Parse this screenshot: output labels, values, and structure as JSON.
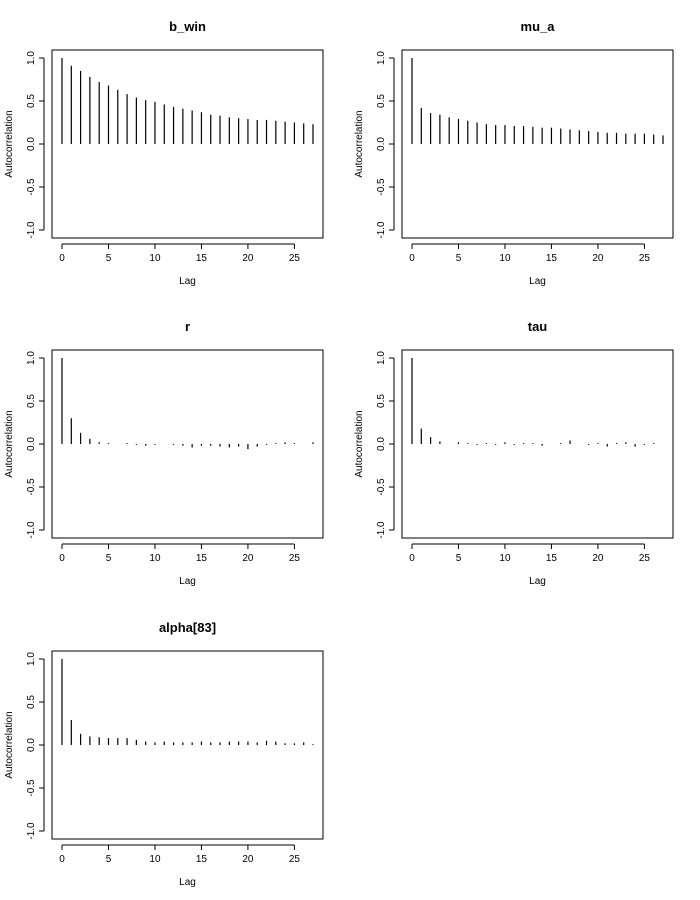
{
  "figure": {
    "background": "#ffffff",
    "ink_color": "#000000"
  },
  "chart_data": [
    {
      "type": "bar",
      "title": "b_win",
      "xlabel": "Lag",
      "ylabel": "Autocorrelation",
      "xlim": [
        0,
        27
      ],
      "ylim": [
        -1,
        1
      ],
      "xticks": [
        0,
        5,
        10,
        15,
        20,
        25
      ],
      "yticks": [
        -1.0,
        -0.5,
        0.0,
        0.5,
        1.0
      ],
      "xtick_labels": [
        "0",
        "5",
        "10",
        "15",
        "20",
        "25"
      ],
      "ytick_labels": [
        "-1.0",
        "-0.5",
        "0.0",
        "0.5",
        "1.0"
      ],
      "grid": false,
      "x": [
        0,
        1,
        2,
        3,
        4,
        5,
        6,
        7,
        8,
        9,
        10,
        11,
        12,
        13,
        14,
        15,
        16,
        17,
        18,
        19,
        20,
        21,
        22,
        23,
        24,
        25,
        26,
        27
      ],
      "values": [
        1.0,
        0.91,
        0.85,
        0.78,
        0.72,
        0.68,
        0.63,
        0.58,
        0.54,
        0.51,
        0.49,
        0.46,
        0.43,
        0.41,
        0.39,
        0.37,
        0.34,
        0.33,
        0.31,
        0.3,
        0.29,
        0.28,
        0.28,
        0.27,
        0.26,
        0.25,
        0.24,
        0.23
      ]
    },
    {
      "type": "bar",
      "title": "mu_a",
      "xlabel": "Lag",
      "ylabel": "Autocorrelation",
      "xlim": [
        0,
        27
      ],
      "ylim": [
        -1,
        1
      ],
      "xticks": [
        0,
        5,
        10,
        15,
        20,
        25
      ],
      "yticks": [
        -1.0,
        -0.5,
        0.0,
        0.5,
        1.0
      ],
      "xtick_labels": [
        "0",
        "5",
        "10",
        "15",
        "20",
        "25"
      ],
      "ytick_labels": [
        "-1.0",
        "-0.5",
        "0.0",
        "0.5",
        "1.0"
      ],
      "grid": false,
      "x": [
        0,
        1,
        2,
        3,
        4,
        5,
        6,
        7,
        8,
        9,
        10,
        11,
        12,
        13,
        14,
        15,
        16,
        17,
        18,
        19,
        20,
        21,
        22,
        23,
        24,
        25,
        26,
        27
      ],
      "values": [
        1.0,
        0.42,
        0.36,
        0.34,
        0.31,
        0.29,
        0.27,
        0.25,
        0.23,
        0.22,
        0.22,
        0.21,
        0.21,
        0.2,
        0.19,
        0.19,
        0.18,
        0.17,
        0.16,
        0.15,
        0.14,
        0.13,
        0.13,
        0.12,
        0.12,
        0.12,
        0.11,
        0.1
      ]
    },
    {
      "type": "bar",
      "title": "r",
      "xlabel": "Lag",
      "ylabel": "Autocorrelation",
      "xlim": [
        0,
        27
      ],
      "ylim": [
        -1,
        1
      ],
      "xticks": [
        0,
        5,
        10,
        15,
        20,
        25
      ],
      "yticks": [
        -1.0,
        -0.5,
        0.0,
        0.5,
        1.0
      ],
      "xtick_labels": [
        "0",
        "5",
        "10",
        "15",
        "20",
        "25"
      ],
      "ytick_labels": [
        "-1.0",
        "-0.5",
        "0.0",
        "0.5",
        "1.0"
      ],
      "grid": false,
      "x": [
        0,
        1,
        2,
        3,
        4,
        5,
        6,
        7,
        8,
        9,
        10,
        11,
        12,
        13,
        14,
        15,
        16,
        17,
        18,
        19,
        20,
        21,
        22,
        23,
        24,
        25,
        26,
        27
      ],
      "values": [
        1.0,
        0.3,
        0.13,
        0.06,
        0.02,
        0.01,
        0.0,
        0.01,
        -0.01,
        -0.02,
        -0.01,
        0.0,
        -0.01,
        -0.02,
        -0.04,
        -0.02,
        -0.02,
        -0.03,
        -0.04,
        -0.03,
        -0.06,
        -0.03,
        -0.01,
        0.01,
        0.02,
        0.01,
        0.0,
        0.02
      ]
    },
    {
      "type": "bar",
      "title": "tau",
      "xlabel": "Lag",
      "ylabel": "Autocorrelation",
      "xlim": [
        0,
        27
      ],
      "ylim": [
        -1,
        1
      ],
      "xticks": [
        0,
        5,
        10,
        15,
        20,
        25
      ],
      "yticks": [
        -1.0,
        -0.5,
        0.0,
        0.5,
        1.0
      ],
      "xtick_labels": [
        "0",
        "5",
        "10",
        "15",
        "20",
        "25"
      ],
      "ytick_labels": [
        "-1.0",
        "-0.5",
        "0.0",
        "0.5",
        "1.0"
      ],
      "grid": false,
      "x": [
        0,
        1,
        2,
        3,
        4,
        5,
        6,
        7,
        8,
        9,
        10,
        11,
        12,
        13,
        14,
        15,
        16,
        17,
        18,
        19,
        20,
        21,
        22,
        23,
        24,
        25,
        26,
        27
      ],
      "values": [
        1.0,
        0.18,
        0.08,
        0.03,
        0.0,
        0.02,
        0.01,
        -0.01,
        0.01,
        -0.01,
        0.02,
        -0.01,
        0.01,
        0.01,
        -0.02,
        0.0,
        0.01,
        0.04,
        0.0,
        -0.01,
        0.01,
        -0.03,
        0.01,
        0.02,
        -0.03,
        -0.01,
        0.01,
        0.0
      ]
    },
    {
      "type": "bar",
      "title": "alpha[83]",
      "xlabel": "Lag",
      "ylabel": "Autocorrelation",
      "xlim": [
        0,
        27
      ],
      "ylim": [
        -1,
        1
      ],
      "xticks": [
        0,
        5,
        10,
        15,
        20,
        25
      ],
      "yticks": [
        -1.0,
        -0.5,
        0.0,
        0.5,
        1.0
      ],
      "xtick_labels": [
        "0",
        "5",
        "10",
        "15",
        "20",
        "25"
      ],
      "ytick_labels": [
        "-1.0",
        "-0.5",
        "0.0",
        "0.5",
        "1.0"
      ],
      "grid": false,
      "x": [
        0,
        1,
        2,
        3,
        4,
        5,
        6,
        7,
        8,
        9,
        10,
        11,
        12,
        13,
        14,
        15,
        16,
        17,
        18,
        19,
        20,
        21,
        22,
        23,
        24,
        25,
        26,
        27
      ],
      "values": [
        1.0,
        0.29,
        0.13,
        0.1,
        0.09,
        0.08,
        0.08,
        0.08,
        0.06,
        0.04,
        0.03,
        0.04,
        0.03,
        0.03,
        0.03,
        0.04,
        0.03,
        0.03,
        0.04,
        0.04,
        0.04,
        0.03,
        0.05,
        0.04,
        0.02,
        0.02,
        0.03,
        0.01
      ]
    }
  ]
}
